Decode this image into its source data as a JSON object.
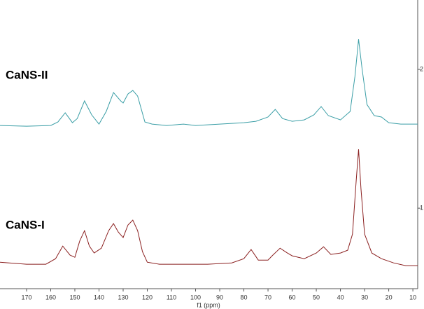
{
  "chart_data": {
    "type": "line",
    "x_label": "f1 (ppm)",
    "xlim": [
      181,
      8
    ],
    "xticks": [
      170,
      160,
      150,
      140,
      130,
      120,
      110,
      100,
      90,
      80,
      70,
      60,
      50,
      40,
      30,
      20,
      10
    ],
    "ylim": [
      0.42,
      2.5
    ],
    "yticks": [
      1,
      2
    ],
    "series": [
      {
        "name": "CaNS-II",
        "color": "#3a9ea6",
        "x": [
          181,
          170,
          160,
          157,
          154,
          151,
          149,
          146,
          143,
          140,
          137,
          134,
          131,
          130,
          128,
          126,
          124,
          121,
          118,
          112,
          105,
          100,
          90,
          80,
          75,
          70,
          67,
          64,
          60,
          55,
          51,
          48,
          45,
          40,
          36,
          34,
          32.5,
          31,
          29,
          26,
          23,
          20,
          15,
          8
        ],
        "values": [
          1.596,
          1.591,
          1.596,
          1.621,
          1.687,
          1.616,
          1.646,
          1.773,
          1.672,
          1.606,
          1.697,
          1.833,
          1.773,
          1.758,
          1.823,
          1.848,
          1.808,
          1.621,
          1.606,
          1.596,
          1.606,
          1.596,
          1.606,
          1.616,
          1.626,
          1.657,
          1.712,
          1.646,
          1.626,
          1.636,
          1.672,
          1.732,
          1.667,
          1.636,
          1.697,
          1.949,
          2.217,
          2.0,
          1.747,
          1.667,
          1.657,
          1.616,
          1.606,
          1.606
        ]
      },
      {
        "name": "CaNS-I",
        "color": "#8b2020",
        "x": [
          181,
          170,
          162,
          158,
          155,
          152,
          150,
          148,
          146,
          144,
          142,
          139,
          136,
          134,
          132,
          130,
          128,
          126,
          124,
          122,
          120,
          115,
          105,
          95,
          85,
          80,
          77,
          74,
          70,
          68,
          65,
          62,
          60,
          55,
          50,
          47,
          44,
          40,
          37,
          35,
          33.5,
          32.5,
          31.5,
          30,
          27,
          23,
          18,
          13,
          8
        ],
        "values": [
          0.611,
          0.596,
          0.596,
          0.636,
          0.727,
          0.662,
          0.646,
          0.763,
          0.838,
          0.727,
          0.677,
          0.712,
          0.838,
          0.889,
          0.828,
          0.788,
          0.879,
          0.914,
          0.838,
          0.687,
          0.611,
          0.596,
          0.596,
          0.596,
          0.606,
          0.636,
          0.702,
          0.626,
          0.626,
          0.662,
          0.712,
          0.677,
          0.657,
          0.636,
          0.677,
          0.722,
          0.667,
          0.677,
          0.697,
          0.813,
          1.192,
          1.424,
          1.141,
          0.813,
          0.677,
          0.636,
          0.606,
          0.586,
          0.586
        ]
      }
    ]
  }
}
